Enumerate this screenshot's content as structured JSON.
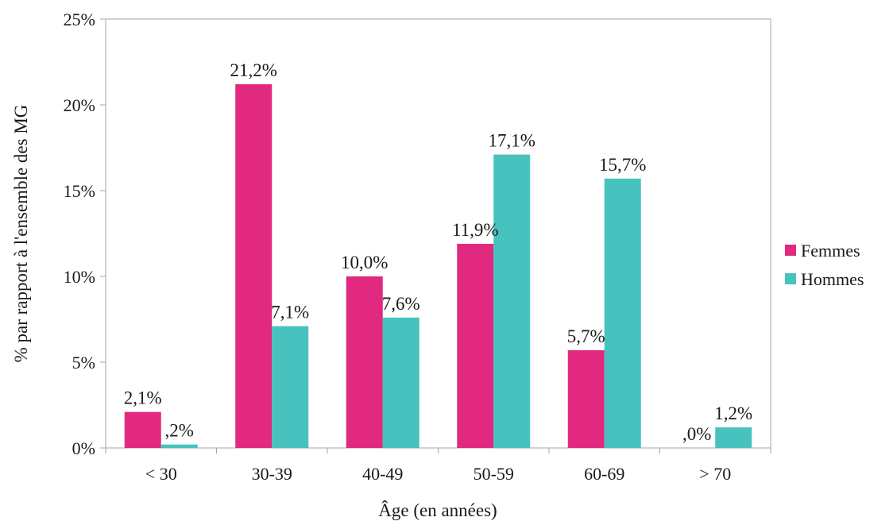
{
  "chart_data": {
    "type": "bar",
    "title": "",
    "xlabel": "Âge (en années)",
    "ylabel": "% par rapport à l'ensemble des MG",
    "categories": [
      "< 30",
      "30-39",
      "40-49",
      "50-59",
      "60-69",
      "> 70"
    ],
    "series": [
      {
        "name": "Femmes",
        "color": "#e0297f",
        "values": [
          2.1,
          21.2,
          10.0,
          11.9,
          5.7,
          0.0
        ],
        "labels": [
          "2,1%",
          "21,2%",
          "10,0%",
          "11,9%",
          "5,7%",
          ",0%"
        ]
      },
      {
        "name": "Hommes",
        "color": "#47c2bf",
        "values": [
          0.2,
          7.1,
          7.6,
          17.1,
          15.7,
          1.2
        ],
        "labels": [
          ",2%",
          "7,1%",
          "7,6%",
          "17,1%",
          "15,7%",
          "1,2%"
        ]
      }
    ],
    "ylim": [
      0,
      25
    ],
    "yticks": [
      0,
      5,
      10,
      15,
      20,
      25
    ],
    "ytick_labels": [
      "0%",
      "5%",
      "10%",
      "15%",
      "20%",
      "25%"
    ],
    "grid": false,
    "legend": "right"
  }
}
